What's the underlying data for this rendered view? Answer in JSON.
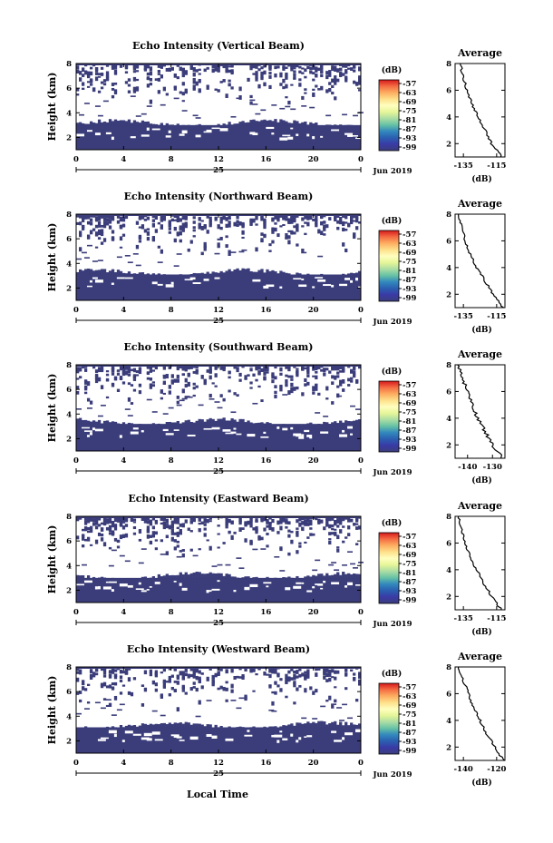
{
  "chart_data": [
    {
      "type": "heatmap",
      "title": "Echo Intensity (Vertical Beam)",
      "ylabel": "Height (km)",
      "x_ticks": [
        "0",
        "4",
        "8",
        "12",
        "16",
        "20",
        "0"
      ],
      "day_label": "25",
      "month_label": "Jun 2019",
      "ylim": [
        1,
        8
      ],
      "y_ticks": [
        "2",
        "4",
        "6",
        "8"
      ],
      "colorbar": {
        "unit": "(dB)",
        "ticks": [
          "-57",
          "-63",
          "-69",
          "-75",
          "-81",
          "-87",
          "-93",
          "-99"
        ]
      },
      "dense_layer_top_km": 3.0,
      "average": {
        "title": "Average",
        "xlabel": "(dB)",
        "x_ticks": [
          "-135",
          "-115"
        ],
        "xlim": [
          -140,
          -110
        ],
        "y_ticks": [
          "2",
          "4",
          "6",
          "8"
        ],
        "profile": [
          [
            -112,
            1
          ],
          [
            -118,
            2
          ],
          [
            -122,
            3
          ],
          [
            -126,
            4
          ],
          [
            -130,
            5
          ],
          [
            -133,
            6
          ],
          [
            -135,
            7
          ],
          [
            -137,
            8
          ]
        ]
      }
    },
    {
      "type": "heatmap",
      "title": "Echo Intensity (Northward Beam)",
      "ylabel": "Height (km)",
      "x_ticks": [
        "0",
        "4",
        "8",
        "12",
        "16",
        "20",
        "0"
      ],
      "day_label": "25",
      "month_label": "Jun 2019",
      "ylim": [
        1,
        8
      ],
      "y_ticks": [
        "2",
        "4",
        "6",
        "8"
      ],
      "colorbar": {
        "unit": "(dB)",
        "ticks": [
          "-57",
          "-63",
          "-69",
          "-75",
          "-81",
          "-87",
          "-93",
          "-99"
        ]
      },
      "dense_layer_top_km": 3.1,
      "average": {
        "title": "Average",
        "xlabel": "(dB)",
        "x_ticks": [
          "-135",
          "-115"
        ],
        "xlim": [
          -140,
          -110
        ],
        "y_ticks": [
          "2",
          "4",
          "6",
          "8"
        ],
        "profile": [
          [
            -111,
            1
          ],
          [
            -117,
            2
          ],
          [
            -122,
            3
          ],
          [
            -127,
            4
          ],
          [
            -131,
            5
          ],
          [
            -134,
            6
          ],
          [
            -136,
            7
          ],
          [
            -138,
            8
          ]
        ]
      }
    },
    {
      "type": "heatmap",
      "title": "Echo Intensity (Southward Beam)",
      "ylabel": "Height (km)",
      "x_ticks": [
        "0",
        "4",
        "8",
        "12",
        "16",
        "20",
        "0"
      ],
      "day_label": "25",
      "month_label": "Jun 2019",
      "ylim": [
        1,
        8
      ],
      "y_ticks": [
        "2",
        "4",
        "6",
        "8"
      ],
      "colorbar": {
        "unit": "(dB)",
        "ticks": [
          "-57",
          "-63",
          "-69",
          "-75",
          "-81",
          "-87",
          "-93",
          "-99"
        ]
      },
      "dense_layer_top_km": 3.2,
      "average": {
        "title": "Average",
        "xlabel": "(dB)",
        "x_ticks": [
          "-140",
          "-130"
        ],
        "xlim": [
          -145,
          -125
        ],
        "y_ticks": [
          "2",
          "4",
          "6",
          "8"
        ],
        "profile": [
          [
            -126,
            1
          ],
          [
            -130,
            2
          ],
          [
            -133,
            3
          ],
          [
            -136,
            4
          ],
          [
            -138,
            5
          ],
          [
            -140,
            6
          ],
          [
            -142,
            7
          ],
          [
            -144,
            8
          ]
        ]
      }
    },
    {
      "type": "heatmap",
      "title": "Echo Intensity (Eastward Beam)",
      "ylabel": "Height (km)",
      "x_ticks": [
        "0",
        "4",
        "8",
        "12",
        "16",
        "20",
        "0"
      ],
      "day_label": "25",
      "month_label": "Jun 2019",
      "ylim": [
        1,
        8
      ],
      "y_ticks": [
        "2",
        "4",
        "6",
        "8"
      ],
      "colorbar": {
        "unit": "(dB)",
        "ticks": [
          "-57",
          "-63",
          "-69",
          "-75",
          "-81",
          "-87",
          "-93",
          "-99"
        ]
      },
      "dense_layer_top_km": 3.0,
      "average": {
        "title": "Average",
        "xlabel": "(dB)",
        "x_ticks": [
          "-135",
          "-115"
        ],
        "xlim": [
          -140,
          -110
        ],
        "y_ticks": [
          "2",
          "4",
          "6",
          "8"
        ],
        "profile": [
          [
            -112,
            1
          ],
          [
            -118,
            2
          ],
          [
            -123,
            3
          ],
          [
            -127,
            4
          ],
          [
            -131,
            5
          ],
          [
            -134,
            6
          ],
          [
            -136,
            7
          ],
          [
            -138,
            8
          ]
        ]
      }
    },
    {
      "type": "heatmap",
      "title": "Echo Intensity (Westward Beam)",
      "ylabel": "Height (km)",
      "x_ticks": [
        "0",
        "4",
        "8",
        "12",
        "16",
        "20",
        "0"
      ],
      "day_label": "25",
      "month_label": "Jun 2019",
      "ylim": [
        1,
        8
      ],
      "y_ticks": [
        "2",
        "4",
        "6",
        "8"
      ],
      "colorbar": {
        "unit": "(dB)",
        "ticks": [
          "-57",
          "-63",
          "-69",
          "-75",
          "-81",
          "-87",
          "-93",
          "-99"
        ]
      },
      "dense_layer_top_km": 3.1,
      "average": {
        "title": "Average",
        "xlabel": "(dB)",
        "x_ticks": [
          "-140",
          "-120"
        ],
        "xlim": [
          -145,
          -115
        ],
        "y_ticks": [
          "2",
          "4",
          "6",
          "8"
        ],
        "profile": [
          [
            -116,
            1
          ],
          [
            -121,
            2
          ],
          [
            -126,
            3
          ],
          [
            -130,
            4
          ],
          [
            -134,
            5
          ],
          [
            -137,
            6
          ],
          [
            -140,
            7
          ],
          [
            -143,
            8
          ]
        ]
      }
    }
  ],
  "xlabel": "Local Time",
  "colors": {
    "fill": "#3b3d7a",
    "colormap": [
      "#d7191c",
      "#f46d43",
      "#fdae61",
      "#fee08b",
      "#ffffbf",
      "#e6f598",
      "#abdda4",
      "#66c2a5",
      "#3288bd",
      "#2b5fb0",
      "#3a3aa6",
      "#3b3d7a"
    ]
  }
}
